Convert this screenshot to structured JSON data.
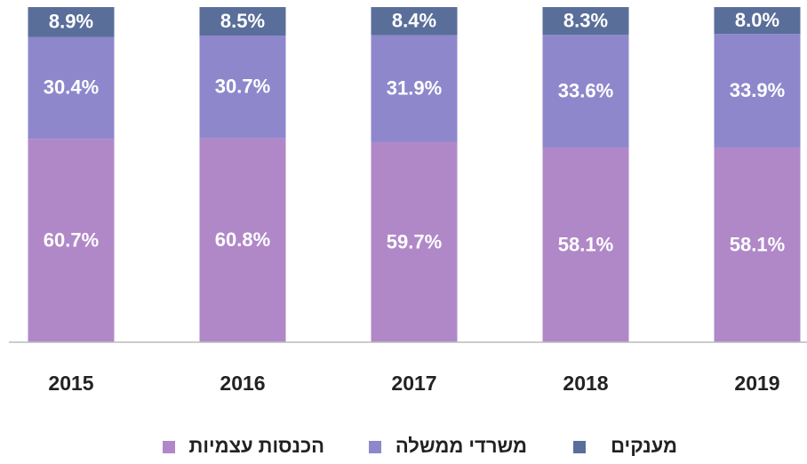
{
  "chart_data": {
    "type": "stacked_bar",
    "categories": [
      "2015",
      "2016",
      "2017",
      "2018",
      "2019"
    ],
    "ylim": [
      0,
      100
    ],
    "series": [
      {
        "name": "הכנסות עצמיות",
        "color": "#b088c8",
        "values": [
          60.7,
          60.8,
          59.7,
          58.1,
          58.1
        ],
        "value_labels": [
          "60.7%",
          "60.8%",
          "59.7%",
          "58.1%",
          "58.1%"
        ]
      },
      {
        "name": "משרדי ממשלה",
        "color": "#8e87cc",
        "values": [
          30.4,
          30.7,
          31.9,
          33.6,
          33.9
        ],
        "value_labels": [
          "30.4%",
          "30.7%",
          "31.9%",
          "33.6%",
          "33.9%"
        ]
      },
      {
        "name": "מענקים",
        "color": "#5a6e9a",
        "values": [
          8.9,
          8.5,
          8.4,
          8.3,
          8
        ],
        "value_labels": [
          "8.9%",
          "8.5%",
          "8.4%",
          "8.3%",
          "8.0%"
        ]
      }
    ]
  }
}
